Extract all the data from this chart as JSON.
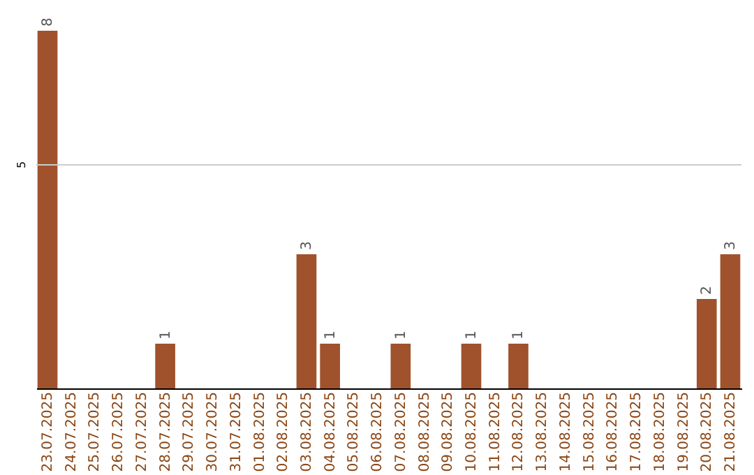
{
  "chart_data": {
    "type": "bar",
    "categories": [
      "23.07.2025",
      "24.07.2025",
      "25.07.2025",
      "26.07.2025",
      "27.07.2025",
      "28.07.2025",
      "29.07.2025",
      "30.07.2025",
      "31.07.2025",
      "01.08.2025",
      "02.08.2025",
      "03.08.2025",
      "04.08.2025",
      "05.08.2025",
      "06.08.2025",
      "07.08.2025",
      "08.08.2025",
      "09.08.2025",
      "10.08.2025",
      "11.08.2025",
      "12.08.2025",
      "13.08.2025",
      "14.08.2025",
      "15.08.2025",
      "16.08.2025",
      "17.08.2025",
      "18.08.2025",
      "19.08.2025",
      "20.08.2025",
      "21.08.2025"
    ],
    "values": [
      8,
      0,
      0,
      0,
      0,
      1,
      0,
      0,
      0,
      0,
      0,
      3,
      1,
      0,
      0,
      1,
      0,
      0,
      1,
      0,
      1,
      0,
      0,
      0,
      0,
      0,
      0,
      0,
      2,
      3
    ],
    "value_labels": [
      "8",
      null,
      null,
      null,
      null,
      "1",
      null,
      null,
      null,
      null,
      null,
      "3",
      "1",
      null,
      null,
      "1",
      null,
      null,
      "1",
      null,
      "1",
      null,
      null,
      null,
      null,
      null,
      null,
      null,
      "2",
      "3"
    ],
    "color": "#a0522d",
    "ref_lines": [
      {
        "axis": "y",
        "value": 5,
        "label": "5",
        "color": "#cccccc"
      }
    ]
  }
}
